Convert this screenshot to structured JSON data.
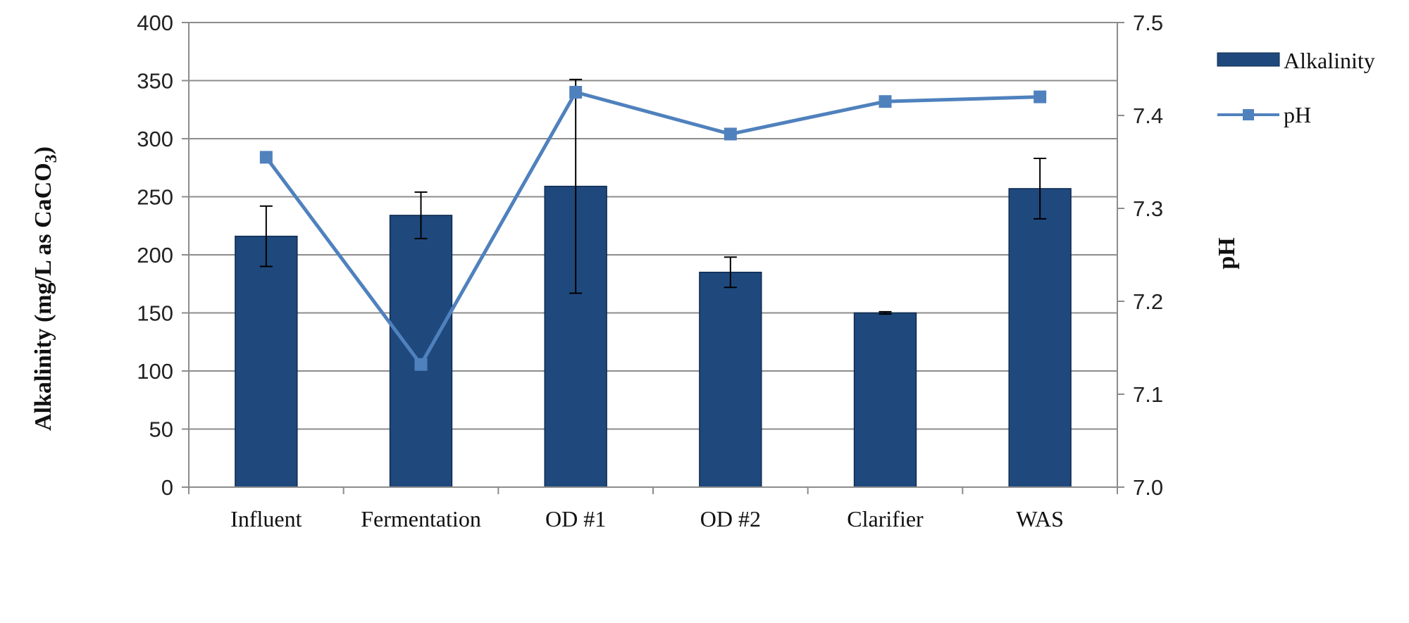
{
  "chart_data": {
    "type": "bar",
    "categories": [
      "Influent",
      "Fermentation",
      "OD #1",
      "OD #2",
      "Clarifier",
      "WAS"
    ],
    "series": [
      {
        "name": "Alkalinity",
        "type": "bar",
        "axis": "left",
        "values": [
          216,
          234,
          259,
          185,
          150,
          257
        ],
        "error": [
          26,
          20,
          92,
          13,
          1,
          26
        ],
        "color": "#1f497d"
      },
      {
        "name": "pH",
        "type": "line",
        "axis": "right",
        "values": [
          7.355,
          7.132,
          7.425,
          7.38,
          7.415,
          7.42
        ],
        "color": "#4f81bd"
      }
    ],
    "ylabel": "Alkalinity (mg/L as CaCO",
    "ylabel_sub": "3",
    "ylabel_close": ")",
    "ylim": [
      0,
      400
    ],
    "y_ticks": [
      "0",
      "50",
      "100",
      "150",
      "200",
      "250",
      "300",
      "350",
      "400"
    ],
    "y2label": "pH",
    "y2lim": [
      7.0,
      7.5
    ],
    "y2_ticks": [
      "7.0",
      "7.1",
      "7.2",
      "7.3",
      "7.4",
      "7.5"
    ],
    "grid": true,
    "legend_position": "right"
  }
}
